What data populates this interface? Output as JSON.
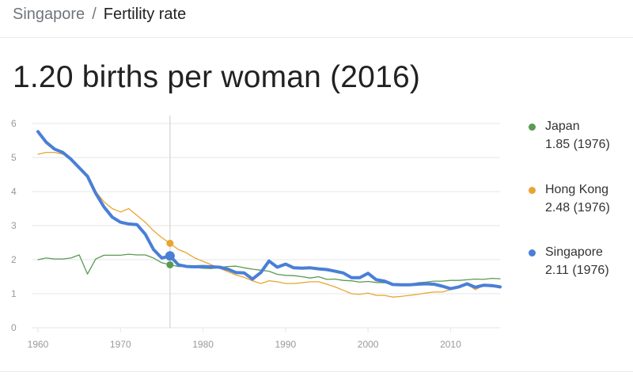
{
  "breadcrumb": {
    "parent": "Singapore",
    "separator": "/",
    "current": "Fertility rate"
  },
  "headline": "1.20 births per woman (2016)",
  "colors": {
    "singapore": "#4a7fd6",
    "japan": "#5a9a52",
    "hong_kong": "#e8a532",
    "grid": "#e6e6e6",
    "axis_text": "#999999",
    "hover_line": "#dcdcdc"
  },
  "legend": [
    {
      "name": "Japan",
      "value": "1.85 (1976)",
      "color": "#5a9a52"
    },
    {
      "name": "Hong Kong",
      "value": "2.48 (1976)",
      "color": "#e8a532"
    },
    {
      "name": "Singapore",
      "value": "2.11 (1976)",
      "color": "#4a7fd6"
    }
  ],
  "chart_data": {
    "type": "line",
    "title": "1.20 births per woman (2016)",
    "xlabel": "",
    "ylabel": "",
    "xlim": [
      1960,
      2016
    ],
    "ylim": [
      0,
      6
    ],
    "xticks": [
      "1960",
      "1970",
      "1980",
      "1990",
      "2000",
      "2010"
    ],
    "yticks": [
      "0",
      "1",
      "2",
      "3",
      "4",
      "5",
      "6"
    ],
    "grid": true,
    "legend_position": "right",
    "highlight_year": 1976,
    "series": [
      {
        "name": "Japan",
        "color": "#5a9a52",
        "width": 1.3,
        "points": [
          [
            1960,
            2.0
          ],
          [
            1961,
            2.05
          ],
          [
            1962,
            2.02
          ],
          [
            1963,
            2.02
          ],
          [
            1964,
            2.05
          ],
          [
            1965,
            2.14
          ],
          [
            1966,
            1.58
          ],
          [
            1967,
            2.02
          ],
          [
            1968,
            2.13
          ],
          [
            1969,
            2.13
          ],
          [
            1970,
            2.13
          ],
          [
            1971,
            2.16
          ],
          [
            1972,
            2.14
          ],
          [
            1973,
            2.14
          ],
          [
            1974,
            2.05
          ],
          [
            1975,
            1.91
          ],
          [
            1976,
            1.85
          ],
          [
            1977,
            1.8
          ],
          [
            1978,
            1.79
          ],
          [
            1979,
            1.77
          ],
          [
            1980,
            1.75
          ],
          [
            1981,
            1.74
          ],
          [
            1982,
            1.77
          ],
          [
            1983,
            1.8
          ],
          [
            1984,
            1.81
          ],
          [
            1985,
            1.76
          ],
          [
            1986,
            1.72
          ],
          [
            1987,
            1.69
          ],
          [
            1988,
            1.66
          ],
          [
            1989,
            1.57
          ],
          [
            1990,
            1.54
          ],
          [
            1991,
            1.53
          ],
          [
            1992,
            1.5
          ],
          [
            1993,
            1.46
          ],
          [
            1994,
            1.5
          ],
          [
            1995,
            1.42
          ],
          [
            1996,
            1.43
          ],
          [
            1997,
            1.39
          ],
          [
            1998,
            1.38
          ],
          [
            1999,
            1.34
          ],
          [
            2000,
            1.36
          ],
          [
            2001,
            1.33
          ],
          [
            2002,
            1.32
          ],
          [
            2003,
            1.29
          ],
          [
            2004,
            1.29
          ],
          [
            2005,
            1.26
          ],
          [
            2006,
            1.32
          ],
          [
            2007,
            1.34
          ],
          [
            2008,
            1.37
          ],
          [
            2009,
            1.37
          ],
          [
            2010,
            1.39
          ],
          [
            2011,
            1.39
          ],
          [
            2012,
            1.41
          ],
          [
            2013,
            1.43
          ],
          [
            2014,
            1.42
          ],
          [
            2015,
            1.45
          ],
          [
            2016,
            1.44
          ]
        ]
      },
      {
        "name": "Hong Kong",
        "color": "#e8a532",
        "width": 1.3,
        "points": [
          [
            1960,
            5.1
          ],
          [
            1961,
            5.15
          ],
          [
            1962,
            5.15
          ],
          [
            1963,
            5.1
          ],
          [
            1964,
            4.95
          ],
          [
            1965,
            4.7
          ],
          [
            1966,
            4.4
          ],
          [
            1967,
            4.0
          ],
          [
            1968,
            3.7
          ],
          [
            1969,
            3.5
          ],
          [
            1970,
            3.4
          ],
          [
            1971,
            3.5
          ],
          [
            1972,
            3.3
          ],
          [
            1973,
            3.1
          ],
          [
            1974,
            2.85
          ],
          [
            1975,
            2.65
          ],
          [
            1976,
            2.48
          ],
          [
            1977,
            2.3
          ],
          [
            1978,
            2.2
          ],
          [
            1979,
            2.05
          ],
          [
            1980,
            1.95
          ],
          [
            1981,
            1.85
          ],
          [
            1982,
            1.75
          ],
          [
            1983,
            1.65
          ],
          [
            1984,
            1.55
          ],
          [
            1985,
            1.48
          ],
          [
            1986,
            1.38
          ],
          [
            1987,
            1.3
          ],
          [
            1988,
            1.38
          ],
          [
            1989,
            1.35
          ],
          [
            1990,
            1.3
          ],
          [
            1991,
            1.3
          ],
          [
            1992,
            1.32
          ],
          [
            1993,
            1.35
          ],
          [
            1994,
            1.35
          ],
          [
            1995,
            1.28
          ],
          [
            1996,
            1.2
          ],
          [
            1997,
            1.1
          ],
          [
            1998,
            1.0
          ],
          [
            1999,
            0.98
          ],
          [
            2000,
            1.02
          ],
          [
            2001,
            0.95
          ],
          [
            2002,
            0.95
          ],
          [
            2003,
            0.9
          ],
          [
            2004,
            0.92
          ],
          [
            2005,
            0.95
          ],
          [
            2006,
            0.98
          ],
          [
            2007,
            1.02
          ],
          [
            2008,
            1.05
          ],
          [
            2009,
            1.05
          ],
          [
            2010,
            1.12
          ],
          [
            2011,
            1.2
          ],
          [
            2012,
            1.28
          ],
          [
            2013,
            1.12
          ],
          [
            2014,
            1.24
          ],
          [
            2015,
            1.2
          ],
          [
            2016,
            1.21
          ]
        ]
      },
      {
        "name": "Singapore",
        "color": "#4a7fd6",
        "width": 4,
        "points": [
          [
            1960,
            5.76
          ],
          [
            1961,
            5.45
          ],
          [
            1962,
            5.25
          ],
          [
            1963,
            5.15
          ],
          [
            1964,
            4.95
          ],
          [
            1965,
            4.7
          ],
          [
            1966,
            4.45
          ],
          [
            1967,
            3.95
          ],
          [
            1968,
            3.55
          ],
          [
            1969,
            3.25
          ],
          [
            1970,
            3.1
          ],
          [
            1971,
            3.05
          ],
          [
            1972,
            3.03
          ],
          [
            1973,
            2.75
          ],
          [
            1974,
            2.3
          ],
          [
            1975,
            2.05
          ],
          [
            1976,
            2.11
          ],
          [
            1977,
            1.85
          ],
          [
            1978,
            1.8
          ],
          [
            1979,
            1.79
          ],
          [
            1980,
            1.8
          ],
          [
            1981,
            1.79
          ],
          [
            1982,
            1.78
          ],
          [
            1983,
            1.72
          ],
          [
            1984,
            1.62
          ],
          [
            1985,
            1.61
          ],
          [
            1986,
            1.43
          ],
          [
            1987,
            1.62
          ],
          [
            1988,
            1.96
          ],
          [
            1989,
            1.78
          ],
          [
            1990,
            1.87
          ],
          [
            1991,
            1.76
          ],
          [
            1992,
            1.75
          ],
          [
            1993,
            1.76
          ],
          [
            1994,
            1.73
          ],
          [
            1995,
            1.71
          ],
          [
            1996,
            1.66
          ],
          [
            1997,
            1.61
          ],
          [
            1998,
            1.47
          ],
          [
            1999,
            1.47
          ],
          [
            2000,
            1.6
          ],
          [
            2001,
            1.41
          ],
          [
            2002,
            1.37
          ],
          [
            2003,
            1.27
          ],
          [
            2004,
            1.26
          ],
          [
            2005,
            1.26
          ],
          [
            2006,
            1.28
          ],
          [
            2007,
            1.29
          ],
          [
            2008,
            1.28
          ],
          [
            2009,
            1.22
          ],
          [
            2010,
            1.15
          ],
          [
            2011,
            1.2
          ],
          [
            2012,
            1.29
          ],
          [
            2013,
            1.19
          ],
          [
            2014,
            1.25
          ],
          [
            2015,
            1.24
          ],
          [
            2016,
            1.2
          ]
        ]
      }
    ]
  }
}
